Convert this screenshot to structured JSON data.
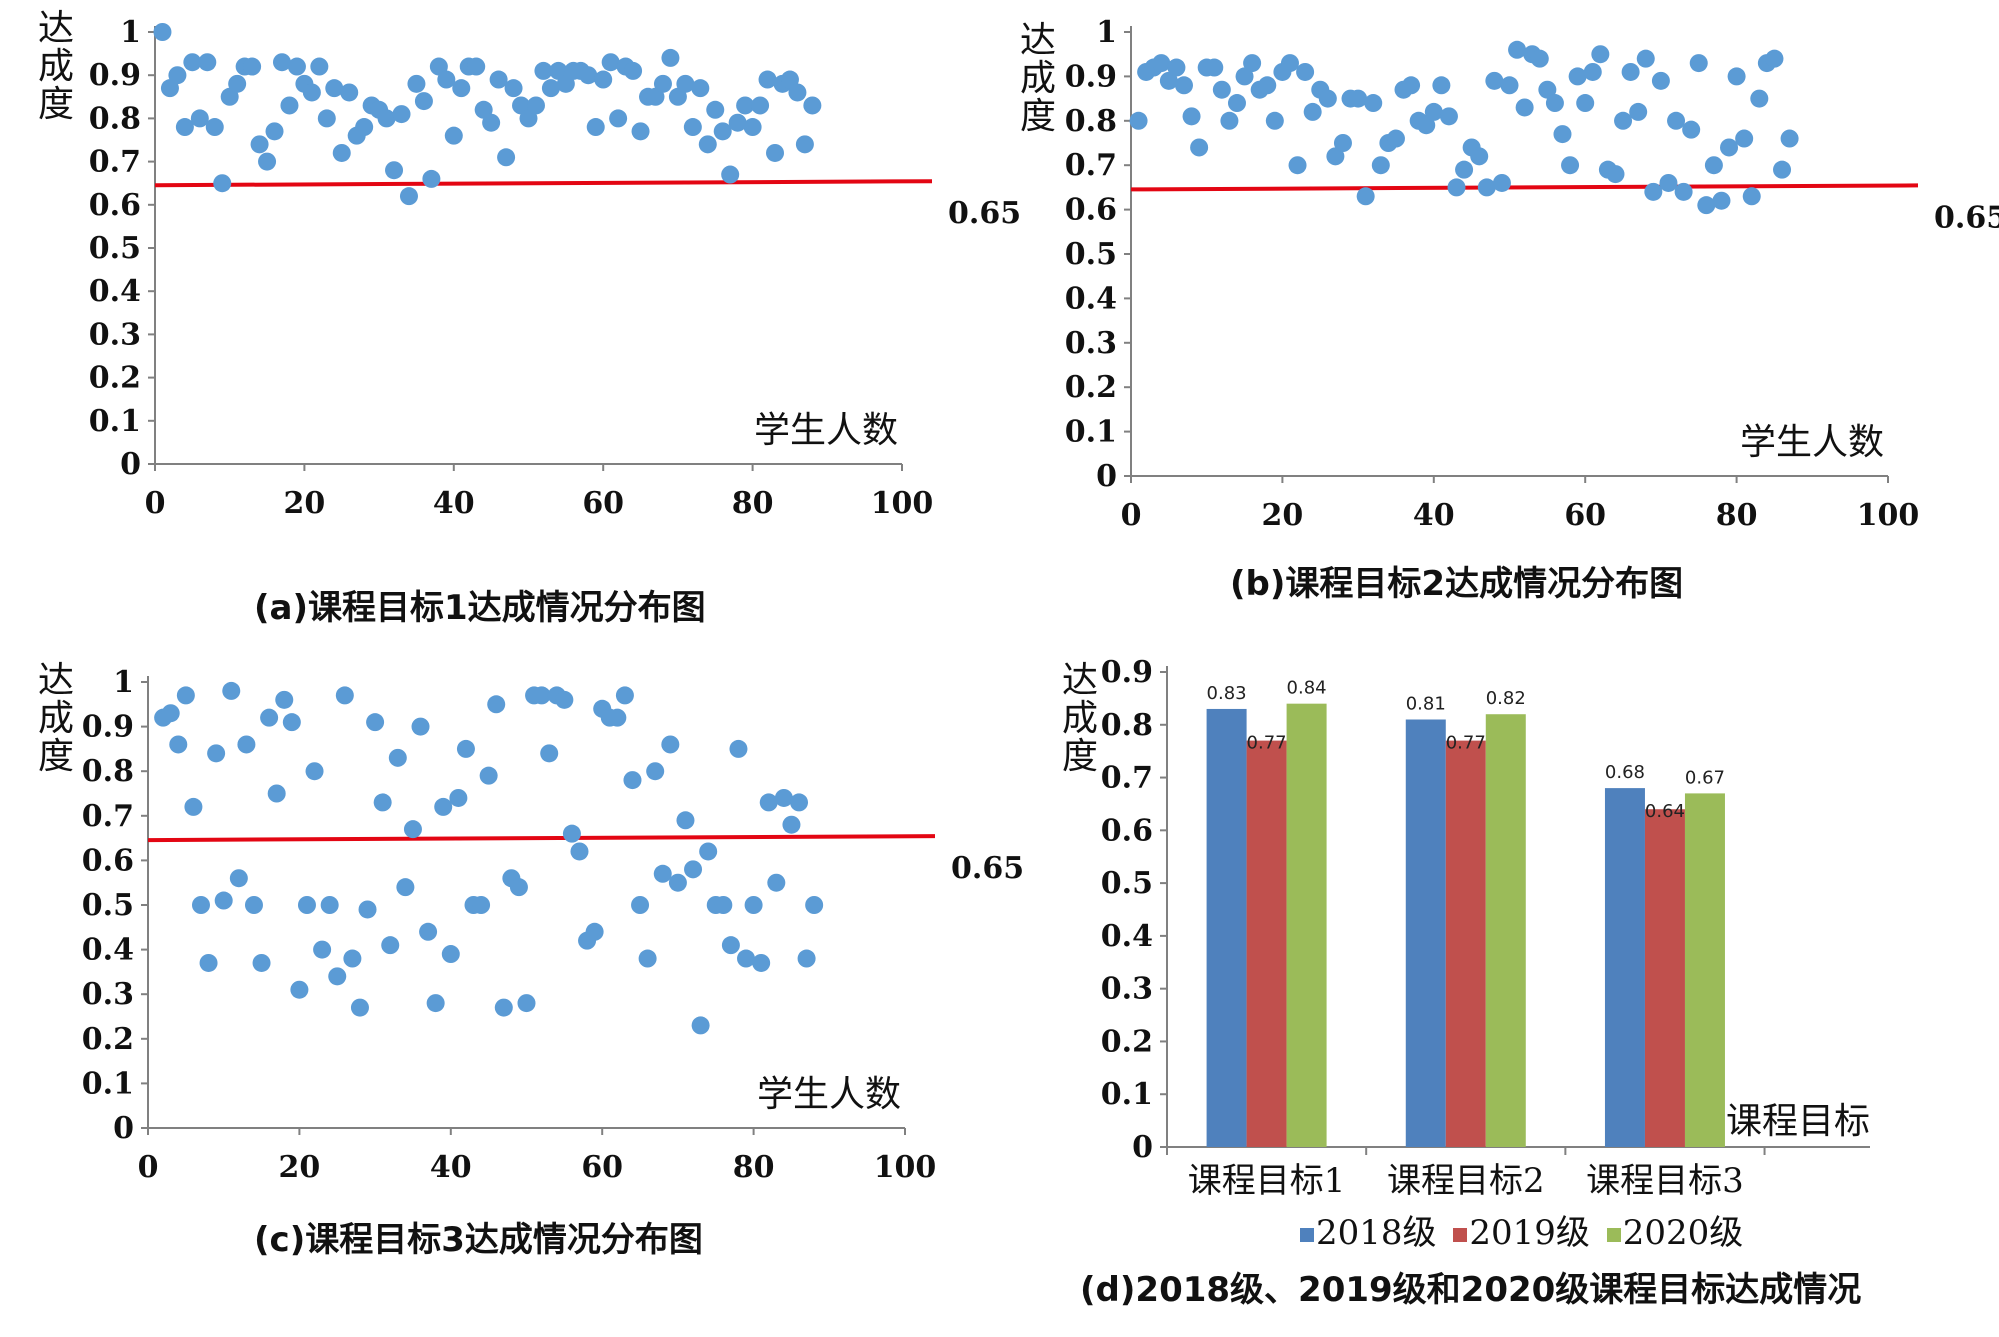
{
  "colors": {
    "point": "#5b9bd5",
    "ref_line": "#e30613",
    "axis": "#808080",
    "series_2018": "#4f81bd",
    "series_2019": "#c0504d",
    "series_2020": "#9bbb59"
  },
  "chart_data": [
    {
      "type": "scatter",
      "caption": "(a)课程目标1达成情况分布图",
      "ylabel": "达成度",
      "xlabel": "学生人数",
      "xlim": [
        0,
        100
      ],
      "ylim": [
        0,
        1
      ],
      "xticks": [
        "0",
        "20",
        "40",
        "60",
        "80",
        "100"
      ],
      "yticks": [
        "0",
        "0.1",
        "0.2",
        "0.3",
        "0.4",
        "0.5",
        "0.6",
        "0.7",
        "0.8",
        "0.9",
        "1"
      ],
      "reference": {
        "value": 0.65,
        "label": "0.65"
      },
      "points": [
        [
          1,
          1.0
        ],
        [
          2,
          0.87
        ],
        [
          3,
          0.9
        ],
        [
          4,
          0.78
        ],
        [
          5,
          0.93
        ],
        [
          6,
          0.8
        ],
        [
          7,
          0.93
        ],
        [
          8,
          0.78
        ],
        [
          9,
          0.65
        ],
        [
          10,
          0.85
        ],
        [
          11,
          0.88
        ],
        [
          12,
          0.92
        ],
        [
          13,
          0.92
        ],
        [
          14,
          0.74
        ],
        [
          15,
          0.7
        ],
        [
          16,
          0.77
        ],
        [
          17,
          0.93
        ],
        [
          18,
          0.83
        ],
        [
          19,
          0.92
        ],
        [
          20,
          0.88
        ],
        [
          21,
          0.86
        ],
        [
          22,
          0.92
        ],
        [
          23,
          0.8
        ],
        [
          24,
          0.87
        ],
        [
          25,
          0.72
        ],
        [
          26,
          0.86
        ],
        [
          27,
          0.76
        ],
        [
          28,
          0.78
        ],
        [
          29,
          0.83
        ],
        [
          30,
          0.82
        ],
        [
          31,
          0.8
        ],
        [
          32,
          0.68
        ],
        [
          33,
          0.81
        ],
        [
          34,
          0.62
        ],
        [
          35,
          0.88
        ],
        [
          36,
          0.84
        ],
        [
          37,
          0.66
        ],
        [
          38,
          0.92
        ],
        [
          39,
          0.89
        ],
        [
          40,
          0.76
        ],
        [
          41,
          0.87
        ],
        [
          42,
          0.92
        ],
        [
          43,
          0.92
        ],
        [
          44,
          0.82
        ],
        [
          45,
          0.79
        ],
        [
          46,
          0.89
        ],
        [
          47,
          0.71
        ],
        [
          48,
          0.87
        ],
        [
          49,
          0.83
        ],
        [
          50,
          0.8
        ],
        [
          51,
          0.83
        ],
        [
          52,
          0.91
        ],
        [
          53,
          0.87
        ],
        [
          54,
          0.91
        ],
        [
          55,
          0.88
        ],
        [
          56,
          0.91
        ],
        [
          57,
          0.91
        ],
        [
          58,
          0.9
        ],
        [
          59,
          0.78
        ],
        [
          60,
          0.89
        ],
        [
          61,
          0.93
        ],
        [
          62,
          0.8
        ],
        [
          63,
          0.92
        ],
        [
          64,
          0.91
        ],
        [
          65,
          0.77
        ],
        [
          66,
          0.85
        ],
        [
          67,
          0.85
        ],
        [
          68,
          0.88
        ],
        [
          69,
          0.94
        ],
        [
          70,
          0.85
        ],
        [
          71,
          0.88
        ],
        [
          72,
          0.78
        ],
        [
          73,
          0.87
        ],
        [
          74,
          0.74
        ],
        [
          75,
          0.82
        ],
        [
          76,
          0.77
        ],
        [
          77,
          0.67
        ],
        [
          78,
          0.79
        ],
        [
          79,
          0.83
        ],
        [
          80,
          0.78
        ],
        [
          81,
          0.83
        ],
        [
          82,
          0.89
        ],
        [
          83,
          0.72
        ],
        [
          84,
          0.88
        ],
        [
          85,
          0.89
        ],
        [
          86,
          0.86
        ],
        [
          87,
          0.74
        ],
        [
          88,
          0.83
        ]
      ]
    },
    {
      "type": "scatter",
      "caption": "(b)课程目标2达成情况分布图",
      "ylabel": "达成度",
      "xlabel": "学生人数",
      "xlim": [
        0,
        100
      ],
      "ylim": [
        0,
        1
      ],
      "xticks": [
        "0",
        "20",
        "40",
        "60",
        "80",
        "100"
      ],
      "yticks": [
        "0",
        "0.1",
        "0.2",
        "0.3",
        "0.4",
        "0.5",
        "0.6",
        "0.7",
        "0.8",
        "0.9",
        "1"
      ],
      "reference": {
        "value": 0.65,
        "label": "0.65"
      },
      "points": [
        [
          1,
          0.8
        ],
        [
          2,
          0.91
        ],
        [
          3,
          0.92
        ],
        [
          4,
          0.93
        ],
        [
          5,
          0.89
        ],
        [
          6,
          0.92
        ],
        [
          7,
          0.88
        ],
        [
          8,
          0.81
        ],
        [
          9,
          0.74
        ],
        [
          10,
          0.92
        ],
        [
          11,
          0.92
        ],
        [
          12,
          0.87
        ],
        [
          13,
          0.8
        ],
        [
          14,
          0.84
        ],
        [
          15,
          0.9
        ],
        [
          16,
          0.93
        ],
        [
          17,
          0.87
        ],
        [
          18,
          0.88
        ],
        [
          19,
          0.8
        ],
        [
          20,
          0.91
        ],
        [
          21,
          0.93
        ],
        [
          22,
          0.7
        ],
        [
          23,
          0.91
        ],
        [
          24,
          0.82
        ],
        [
          25,
          0.87
        ],
        [
          26,
          0.85
        ],
        [
          27,
          0.72
        ],
        [
          28,
          0.75
        ],
        [
          29,
          0.85
        ],
        [
          30,
          0.85
        ],
        [
          31,
          0.63
        ],
        [
          32,
          0.84
        ],
        [
          33,
          0.7
        ],
        [
          34,
          0.75
        ],
        [
          35,
          0.76
        ],
        [
          36,
          0.87
        ],
        [
          37,
          0.88
        ],
        [
          38,
          0.8
        ],
        [
          39,
          0.79
        ],
        [
          40,
          0.82
        ],
        [
          41,
          0.88
        ],
        [
          42,
          0.81
        ],
        [
          43,
          0.65
        ],
        [
          44,
          0.69
        ],
        [
          45,
          0.74
        ],
        [
          46,
          0.72
        ],
        [
          47,
          0.65
        ],
        [
          48,
          0.89
        ],
        [
          49,
          0.66
        ],
        [
          50,
          0.88
        ],
        [
          51,
          0.96
        ],
        [
          52,
          0.83
        ],
        [
          53,
          0.95
        ],
        [
          54,
          0.94
        ],
        [
          55,
          0.87
        ],
        [
          56,
          0.84
        ],
        [
          57,
          0.77
        ],
        [
          58,
          0.7
        ],
        [
          59,
          0.9
        ],
        [
          60,
          0.84
        ],
        [
          61,
          0.91
        ],
        [
          62,
          0.95
        ],
        [
          63,
          0.69
        ],
        [
          64,
          0.68
        ],
        [
          65,
          0.8
        ],
        [
          66,
          0.91
        ],
        [
          67,
          0.82
        ],
        [
          68,
          0.94
        ],
        [
          69,
          0.64
        ],
        [
          70,
          0.89
        ],
        [
          71,
          0.66
        ],
        [
          72,
          0.8
        ],
        [
          73,
          0.64
        ],
        [
          74,
          0.78
        ],
        [
          75,
          0.93
        ],
        [
          76,
          0.61
        ],
        [
          77,
          0.7
        ],
        [
          78,
          0.62
        ],
        [
          79,
          0.74
        ],
        [
          80,
          0.9
        ],
        [
          81,
          0.76
        ],
        [
          82,
          0.63
        ],
        [
          83,
          0.85
        ],
        [
          84,
          0.93
        ],
        [
          85,
          0.94
        ],
        [
          86,
          0.69
        ],
        [
          87,
          0.76
        ]
      ]
    },
    {
      "type": "scatter",
      "caption": "(c)课程目标3达成情况分布图",
      "ylabel": "达成度",
      "xlabel": "学生人数",
      "xlim": [
        0,
        100
      ],
      "ylim": [
        0,
        1
      ],
      "xticks": [
        "0",
        "20",
        "40",
        "60",
        "80",
        "100"
      ],
      "yticks": [
        "0",
        "0.1",
        "0.2",
        "0.3",
        "0.4",
        "0.5",
        "0.6",
        "0.7",
        "0.8",
        "0.9",
        "1"
      ],
      "reference": {
        "value": 0.65,
        "label": "0.65"
      },
      "points": [
        [
          2,
          0.92
        ],
        [
          3,
          0.93
        ],
        [
          4,
          0.86
        ],
        [
          5,
          0.97
        ],
        [
          6,
          0.72
        ],
        [
          7,
          0.5
        ],
        [
          8,
          0.37
        ],
        [
          9,
          0.84
        ],
        [
          10,
          0.51
        ],
        [
          11,
          0.98
        ],
        [
          12,
          0.56
        ],
        [
          13,
          0.86
        ],
        [
          14,
          0.5
        ],
        [
          15,
          0.37
        ],
        [
          16,
          0.92
        ],
        [
          17,
          0.75
        ],
        [
          18,
          0.96
        ],
        [
          19,
          0.91
        ],
        [
          20,
          0.31
        ],
        [
          21,
          0.5
        ],
        [
          22,
          0.8
        ],
        [
          23,
          0.4
        ],
        [
          24,
          0.5
        ],
        [
          25,
          0.34
        ],
        [
          26,
          0.97
        ],
        [
          27,
          0.38
        ],
        [
          28,
          0.27
        ],
        [
          29,
          0.49
        ],
        [
          30,
          0.91
        ],
        [
          31,
          0.73
        ],
        [
          32,
          0.41
        ],
        [
          33,
          0.83
        ],
        [
          34,
          0.54
        ],
        [
          35,
          0.67
        ],
        [
          36,
          0.9
        ],
        [
          37,
          0.44
        ],
        [
          38,
          0.28
        ],
        [
          39,
          0.72
        ],
        [
          40,
          0.39
        ],
        [
          41,
          0.74
        ],
        [
          42,
          0.85
        ],
        [
          43,
          0.5
        ],
        [
          44,
          0.5
        ],
        [
          45,
          0.79
        ],
        [
          46,
          0.95
        ],
        [
          47,
          0.27
        ],
        [
          48,
          0.56
        ],
        [
          49,
          0.54
        ],
        [
          50,
          0.28
        ],
        [
          51,
          0.97
        ],
        [
          52,
          0.97
        ],
        [
          53,
          0.84
        ],
        [
          54,
          0.97
        ],
        [
          55,
          0.96
        ],
        [
          56,
          0.66
        ],
        [
          57,
          0.62
        ],
        [
          58,
          0.42
        ],
        [
          59,
          0.44
        ],
        [
          60,
          0.94
        ],
        [
          61,
          0.92
        ],
        [
          62,
          0.92
        ],
        [
          63,
          0.97
        ],
        [
          64,
          0.78
        ],
        [
          65,
          0.5
        ],
        [
          66,
          0.38
        ],
        [
          67,
          0.8
        ],
        [
          68,
          0.57
        ],
        [
          69,
          0.86
        ],
        [
          70,
          0.55
        ],
        [
          71,
          0.69
        ],
        [
          72,
          0.58
        ],
        [
          73,
          0.23
        ],
        [
          74,
          0.62
        ],
        [
          75,
          0.5
        ],
        [
          76,
          0.5
        ],
        [
          77,
          0.41
        ],
        [
          78,
          0.85
        ],
        [
          79,
          0.38
        ],
        [
          80,
          0.5
        ],
        [
          81,
          0.37
        ],
        [
          82,
          0.73
        ],
        [
          83,
          0.55
        ],
        [
          84,
          0.74
        ],
        [
          85,
          0.68
        ],
        [
          86,
          0.73
        ],
        [
          87,
          0.38
        ],
        [
          88,
          0.5
        ]
      ]
    },
    {
      "type": "bar",
      "caption": "(d)2018级、2019级和2020级课程目标达成情况",
      "ylabel": "达成度",
      "xlabel": "课程目标",
      "ylim": [
        0,
        0.9
      ],
      "yticks": [
        "0",
        "0.1",
        "0.2",
        "0.3",
        "0.4",
        "0.5",
        "0.6",
        "0.7",
        "0.8",
        "0.9"
      ],
      "categories": [
        "课程目标1",
        "课程目标2",
        "课程目标3"
      ],
      "series": [
        {
          "name": "2018级",
          "values": [
            0.83,
            0.81,
            0.68
          ],
          "labels": [
            "0.83",
            "0.81",
            "0.68"
          ]
        },
        {
          "name": "2019级",
          "values": [
            0.77,
            0.77,
            0.64
          ],
          "labels": [
            "0.77",
            "0.77",
            "0.64"
          ]
        },
        {
          "name": "2020级",
          "values": [
            0.84,
            0.82,
            0.67
          ],
          "labels": [
            "0.84",
            "0.82",
            "0.67"
          ]
        }
      ],
      "legend_position": "bottom"
    }
  ]
}
